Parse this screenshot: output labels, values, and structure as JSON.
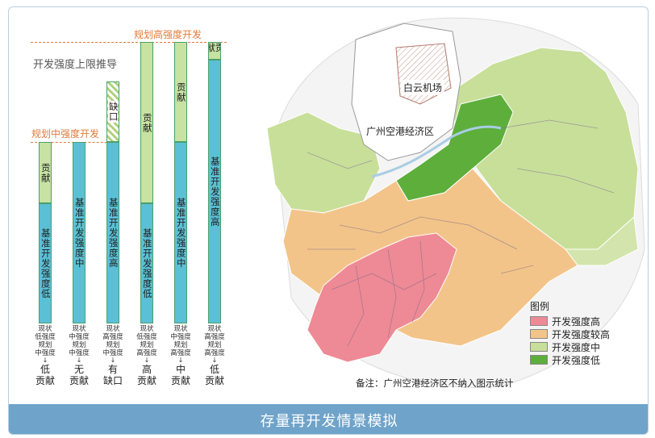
{
  "diagram": {
    "title": "开发强度上限推导",
    "levels": {
      "high_label": "规划高强度开发",
      "mid_label": "规划中强度开发"
    },
    "columns": [
      {
        "base": "基准开发强度低",
        "contrib_type": "contrib",
        "contrib": "贡献",
        "cap": [
          "现状",
          "低强度",
          "规划",
          "中强度"
        ],
        "result": [
          "低",
          "贡献"
        ]
      },
      {
        "base": "基准开发强度中",
        "contrib_type": "none",
        "contrib": "",
        "cap": [
          "现状",
          "中强度",
          "规划",
          "中强度"
        ],
        "result": [
          "无",
          "贡献"
        ]
      },
      {
        "base": "基准开发强度高",
        "contrib_type": "gap",
        "contrib": "缺口",
        "cap": [
          "现状",
          "高强度",
          "规划",
          "中强度"
        ],
        "result": [
          "有",
          "缺口"
        ]
      },
      {
        "base": "基准开发强度低",
        "contrib_type": "contrib",
        "contrib": "贡献",
        "cap": [
          "现状",
          "低强度",
          "规划",
          "高强度"
        ],
        "result": [
          "高",
          "贡献"
        ]
      },
      {
        "base": "基准开发强度中",
        "contrib_type": "contrib",
        "contrib": "贡献",
        "cap": [
          "现状",
          "中强度",
          "规划",
          "高强度"
        ],
        "result": [
          "中",
          "贡献"
        ]
      },
      {
        "base": "基准开发强度高",
        "contrib_type": "contrib",
        "contrib": "贡献",
        "cap": [
          "现状",
          "高强度",
          "规划",
          "高强度"
        ],
        "result": [
          "低",
          "贡献"
        ]
      }
    ]
  },
  "map": {
    "airport_label": "白云机场",
    "zone_label": "广州空港经济区",
    "legend": {
      "title": "图例",
      "items": [
        {
          "label": "开发强度高",
          "color": "#ee8a95"
        },
        {
          "label": "开发强度较高",
          "color": "#f3c489"
        },
        {
          "label": "开发强度中",
          "color": "#c8df9a"
        },
        {
          "label": "开发强度低",
          "color": "#5eae3c"
        }
      ]
    },
    "note": "备注：广州空港经济区不纳入图示统计"
  },
  "banner": {
    "title": "存量再开发情景模拟"
  }
}
